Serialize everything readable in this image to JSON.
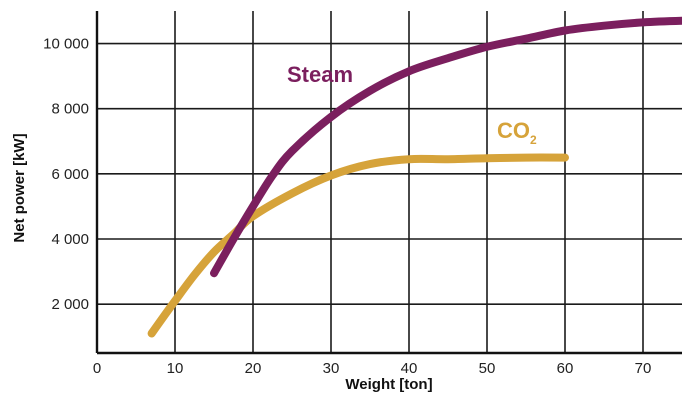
{
  "chart_data": {
    "type": "line",
    "title": "",
    "xlabel": "Weight [ton]",
    "ylabel": "Net power [kW]",
    "xlim": [
      0,
      75
    ],
    "ylim": [
      500,
      11000
    ],
    "x_ticks": [
      0,
      10,
      20,
      30,
      40,
      50,
      60,
      70
    ],
    "y_ticks": [
      2000,
      4000,
      6000,
      8000,
      10000
    ],
    "x_tick_labels": [
      "0",
      "10",
      "20",
      "30",
      "40",
      "50",
      "60",
      "70"
    ],
    "y_tick_labels": [
      "2 000",
      "4 000",
      "6 000",
      "8 000",
      "10 000"
    ],
    "grid": true,
    "legend": "inline labels",
    "series": [
      {
        "name": "Steam",
        "label_main": "Steam",
        "label_sub": "",
        "color": "#7b1f5e",
        "x": [
          15,
          17.5,
          20,
          22.5,
          25,
          30,
          35,
          40,
          45,
          50,
          55,
          60,
          65,
          70,
          75
        ],
        "y": [
          2950,
          4000,
          5000,
          5950,
          6700,
          7750,
          8550,
          9150,
          9550,
          9900,
          10150,
          10400,
          10550,
          10650,
          10700
        ]
      },
      {
        "name": "CO2",
        "label_main": "CO",
        "label_sub": "2",
        "color": "#d6a33a",
        "x": [
          7,
          10,
          12.5,
          15,
          17.5,
          20,
          25,
          30,
          35,
          40,
          45,
          50,
          55,
          60
        ],
        "y": [
          1100,
          2100,
          2900,
          3600,
          4150,
          4700,
          5400,
          5950,
          6300,
          6450,
          6450,
          6480,
          6500,
          6500
        ]
      }
    ]
  }
}
